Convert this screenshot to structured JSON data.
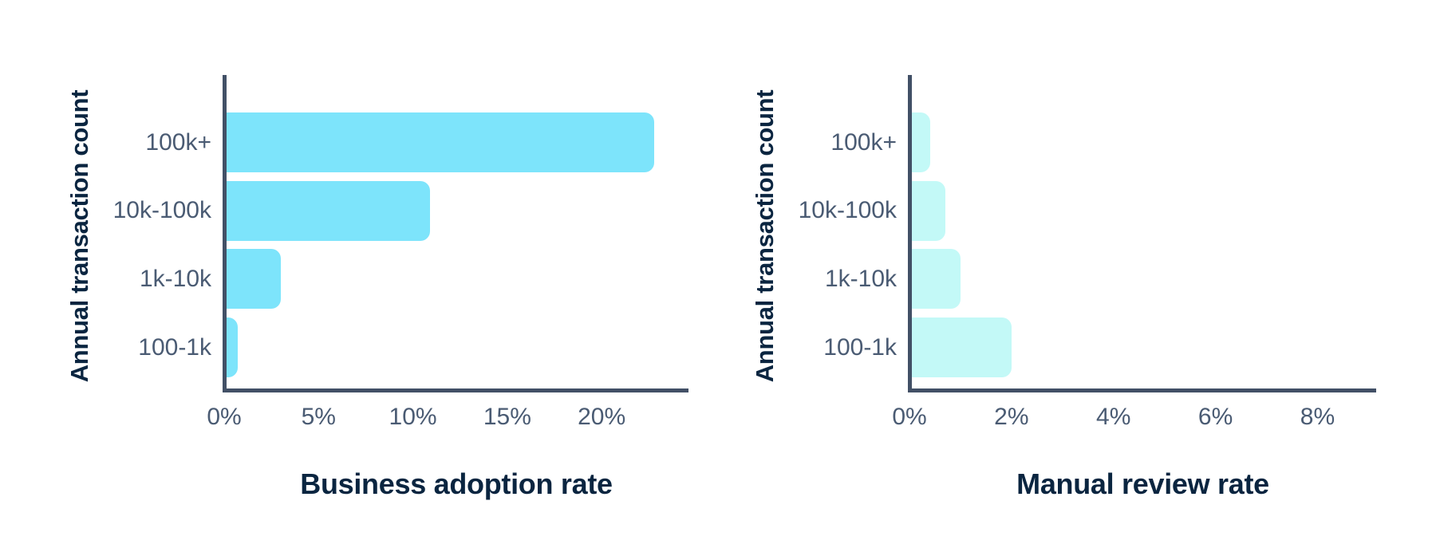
{
  "colors": {
    "background": "#ffffff",
    "axis_line": "#425066",
    "tick_label": "#4A5B73",
    "category_label": "#4A5B73",
    "title_text": "#0A2540",
    "bar_left_chart": "#7DE4FB",
    "bar_right_chart": "#C3F9F7"
  },
  "chart_data": [
    {
      "type": "bar",
      "orientation": "horizontal",
      "title": "Business adoption rate",
      "ylabel": "Annual transaction count",
      "xlabel": "",
      "categories": [
        "100k+",
        "10k-100k",
        "1k-10k",
        "100-1k"
      ],
      "values": [
        22.8,
        10.9,
        3.0,
        0.7
      ],
      "value_unit": "%",
      "x_ticks": [
        0,
        5,
        10,
        15,
        20
      ],
      "x_tick_labels": [
        "0%",
        "5%",
        "10%",
        "15%",
        "20%"
      ],
      "xlim": [
        0,
        24.6
      ],
      "grid": false,
      "legend": null,
      "bar_color": "#7DE4FB"
    },
    {
      "type": "bar",
      "orientation": "horizontal",
      "title": "Manual review rate",
      "ylabel": "Annual transaction count",
      "xlabel": "",
      "categories": [
        "100k+",
        "10k-100k",
        "1k-10k",
        "100-1k"
      ],
      "values": [
        0.4,
        0.7,
        1.0,
        2.0
      ],
      "value_unit": "%",
      "x_ticks": [
        0,
        2,
        4,
        6,
        8
      ],
      "x_tick_labels": [
        "0%",
        "2%",
        "4%",
        "6%",
        "8%"
      ],
      "xlim": [
        0,
        9.15
      ],
      "grid": false,
      "legend": null,
      "bar_color": "#C3F9F7"
    }
  ]
}
